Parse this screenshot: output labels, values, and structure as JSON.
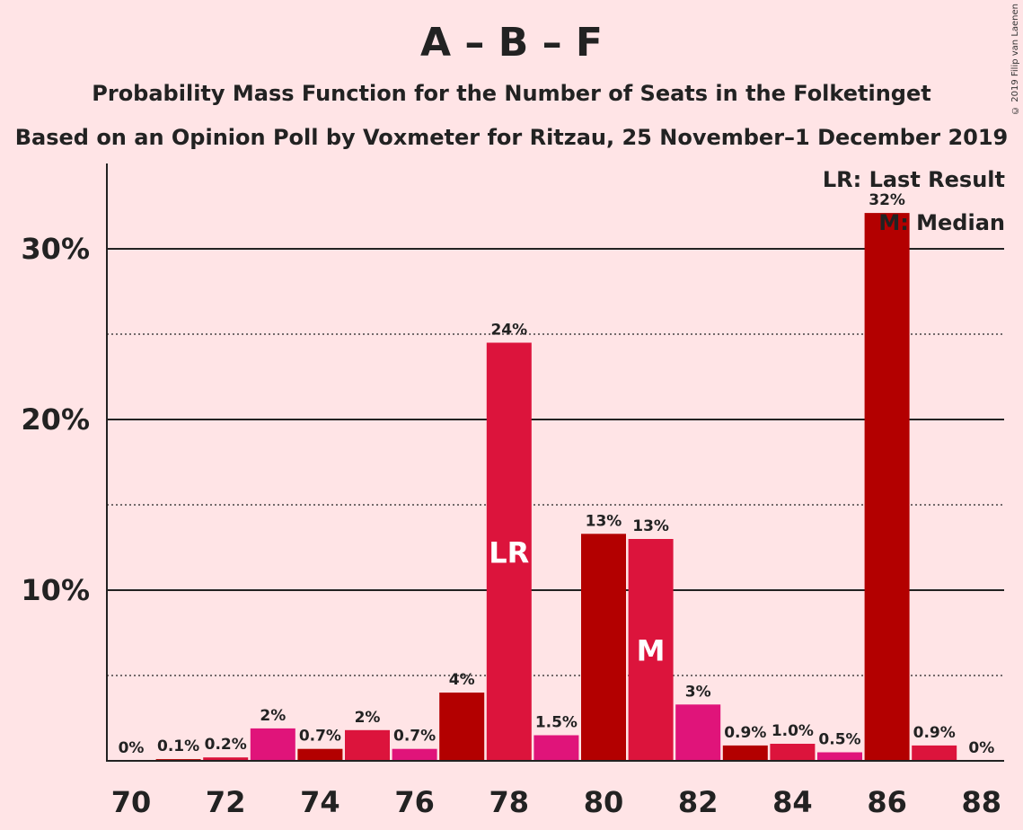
{
  "chart_data": {
    "type": "bar",
    "title": "A – B – F",
    "subtitle": "Probability Mass Function for the Number of Seats in the Folketinget",
    "subtitle2": "Based on an Opinion Poll by Voxmeter for Ritzau, 25 November–1 December 2019",
    "copyright": "© 2019 Filip van Laenen",
    "legend": {
      "lr": "LR: Last Result",
      "m": "M: Median",
      "placement": "top-right"
    },
    "xlim": [
      70,
      88
    ],
    "ylim": [
      0,
      35
    ],
    "x_ticks": [
      70,
      72,
      74,
      76,
      78,
      80,
      82,
      84,
      86,
      88
    ],
    "y_ticks": [
      {
        "value": 10,
        "label": "10%"
      },
      {
        "value": 20,
        "label": "20%"
      },
      {
        "value": 30,
        "label": "30%"
      }
    ],
    "y_minor_ticks": [
      5,
      15,
      25
    ],
    "bars": [
      {
        "x": 70,
        "value": 0,
        "label": "0%",
        "color": "#E0147A"
      },
      {
        "x": 71,
        "value": 0.1,
        "label": "0.1%",
        "color": "#B30000"
      },
      {
        "x": 72,
        "value": 0.2,
        "label": "0.2%",
        "color": "#DC143C"
      },
      {
        "x": 73,
        "value": 1.9,
        "label": "2%",
        "color": "#E0147A"
      },
      {
        "x": 74,
        "value": 0.7,
        "label": "0.7%",
        "color": "#B30000"
      },
      {
        "x": 75,
        "value": 1.8,
        "label": "2%",
        "color": "#DC143C"
      },
      {
        "x": 76,
        "value": 0.7,
        "label": "0.7%",
        "color": "#E0147A"
      },
      {
        "x": 77,
        "value": 4.0,
        "label": "4%",
        "color": "#B30000"
      },
      {
        "x": 78,
        "value": 24.5,
        "label": "24%",
        "color": "#DC143C",
        "mark": "LR"
      },
      {
        "x": 79,
        "value": 1.5,
        "label": "1.5%",
        "color": "#E0147A"
      },
      {
        "x": 80,
        "value": 13.3,
        "label": "13%",
        "color": "#B30000"
      },
      {
        "x": 81,
        "value": 13.0,
        "label": "13%",
        "color": "#DC143C",
        "mark": "M"
      },
      {
        "x": 82,
        "value": 3.3,
        "label": "3%",
        "color": "#E0147A"
      },
      {
        "x": 83,
        "value": 0.9,
        "label": "0.9%",
        "color": "#B30000"
      },
      {
        "x": 84,
        "value": 1.0,
        "label": "1.0%",
        "color": "#DC143C"
      },
      {
        "x": 85,
        "value": 0.5,
        "label": "0.5%",
        "color": "#E0147A"
      },
      {
        "x": 86,
        "value": 32.1,
        "label": "32%",
        "color": "#B30000"
      },
      {
        "x": 87,
        "value": 0.9,
        "label": "0.9%",
        "color": "#DC143C"
      },
      {
        "x": 88,
        "value": 0,
        "label": "0%",
        "color": "#E0147A"
      }
    ]
  }
}
